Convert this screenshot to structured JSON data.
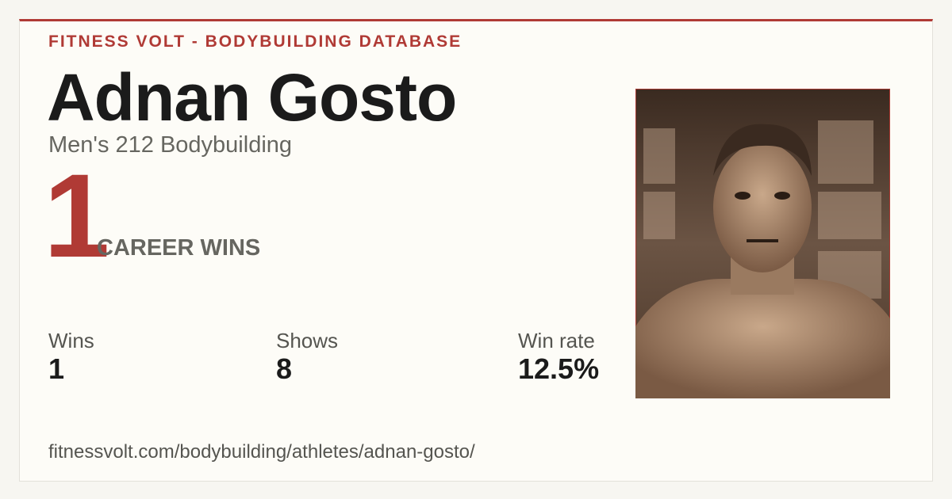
{
  "header": {
    "site": "FITNESS VOLT - BODYBUILDING DATABASE"
  },
  "athlete": {
    "name": "Adnan Gosto",
    "division": "Men's 212 Bodybuilding"
  },
  "career": {
    "wins": "1",
    "label": "CAREER WINS"
  },
  "stats": [
    {
      "label": "Wins",
      "value": "1"
    },
    {
      "label": "Shows",
      "value": "8"
    },
    {
      "label": "Win rate",
      "value": "12.5%"
    }
  ],
  "footer": {
    "url": "fitnessvolt.com/bodybuilding/athletes/adnan-gosto/"
  }
}
